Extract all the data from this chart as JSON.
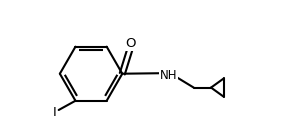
{
  "background_color": "#ffffff",
  "line_color": "#000000",
  "lw": 1.5,
  "figure_width": 2.92,
  "figure_height": 1.38,
  "dpi": 100,
  "I_label": "I",
  "O_label": "O",
  "NH_label": "NH",
  "font_size": 8.5
}
